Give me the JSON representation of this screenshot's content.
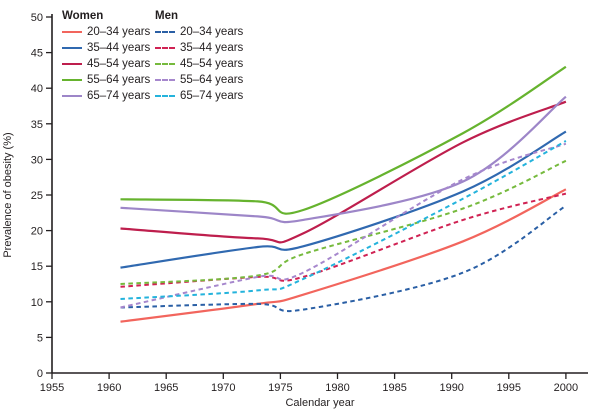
{
  "figure": {
    "background": "#ffffff",
    "text_color": "#231f20",
    "axis_color": "#231f20"
  },
  "legend": {
    "women_header": "Women",
    "men_header": "Men",
    "position": "top-left, two columns"
  },
  "axes": {
    "y_label": "Prevalence of obesity (%)",
    "x_label": "Calendar year",
    "y_ticks": [
      0,
      5,
      10,
      15,
      20,
      25,
      30,
      35,
      40,
      45,
      50
    ],
    "x_ticks": [
      1955,
      1960,
      1965,
      1970,
      1975,
      1980,
      1985,
      1990,
      1995,
      2000
    ]
  },
  "chart_data": {
    "type": "line",
    "title": "",
    "xlabel": "Calendar year",
    "ylabel": "Prevalence of obesity (%)",
    "xlim": [
      1955,
      2002
    ],
    "ylim": [
      0,
      50
    ],
    "grid": false,
    "legend_position": "top-left inside plot",
    "x": [
      1961,
      1973,
      1977,
      1991,
      2000
    ],
    "series": [
      {
        "id": "women-20-34",
        "group": "Women",
        "label": "20–34 years",
        "color": "#f2655d",
        "dashed": false,
        "values": [
          7.2,
          9.7,
          11.0,
          18.5,
          25.8
        ]
      },
      {
        "id": "women-35-44",
        "group": "Women",
        "label": "35–44 years",
        "color": "#3069b0",
        "dashed": false,
        "values": [
          14.8,
          17.7,
          17.8,
          25.5,
          33.9
        ]
      },
      {
        "id": "women-45-54",
        "group": "Women",
        "label": "45–54 years",
        "color": "#be1e4d",
        "dashed": false,
        "values": [
          20.3,
          18.9,
          19.6,
          32.4,
          38.1
        ]
      },
      {
        "id": "women-55-64",
        "group": "Women",
        "label": "55–64 years",
        "color": "#66b32e",
        "dashed": false,
        "values": [
          24.4,
          24.1,
          22.9,
          33.7,
          43.0
        ]
      },
      {
        "id": "women-65-74",
        "group": "Women",
        "label": "65–74 years",
        "color": "#9d86c8",
        "dashed": false,
        "values": [
          23.2,
          22.0,
          21.5,
          26.9,
          38.8
        ]
      },
      {
        "id": "men-20-34",
        "group": "Men",
        "label": "20–34 years",
        "color": "#2a5fa5",
        "dashed": true,
        "values": [
          9.2,
          9.7,
          8.9,
          14.1,
          23.5
        ]
      },
      {
        "id": "men-35-44",
        "group": "Men",
        "label": "35–44 years",
        "color": "#d02253",
        "dashed": true,
        "values": [
          12.1,
          13.5,
          13.5,
          21.5,
          25.2
        ]
      },
      {
        "id": "men-45-54",
        "group": "Men",
        "label": "45–54 years",
        "color": "#76ba3d",
        "dashed": true,
        "values": [
          12.5,
          13.7,
          16.7,
          23.1,
          29.8
        ]
      },
      {
        "id": "men-55-64",
        "group": "Men",
        "label": "55–64 years",
        "color": "#a687cd",
        "dashed": true,
        "values": [
          9.2,
          13.5,
          14.1,
          27.2,
          32.2
        ]
      },
      {
        "id": "men-65-74",
        "group": "Men",
        "label": "65–74 years",
        "color": "#24b3dc",
        "dashed": true,
        "values": [
          10.4,
          11.6,
          13.2,
          24.5,
          32.6
        ]
      }
    ]
  }
}
